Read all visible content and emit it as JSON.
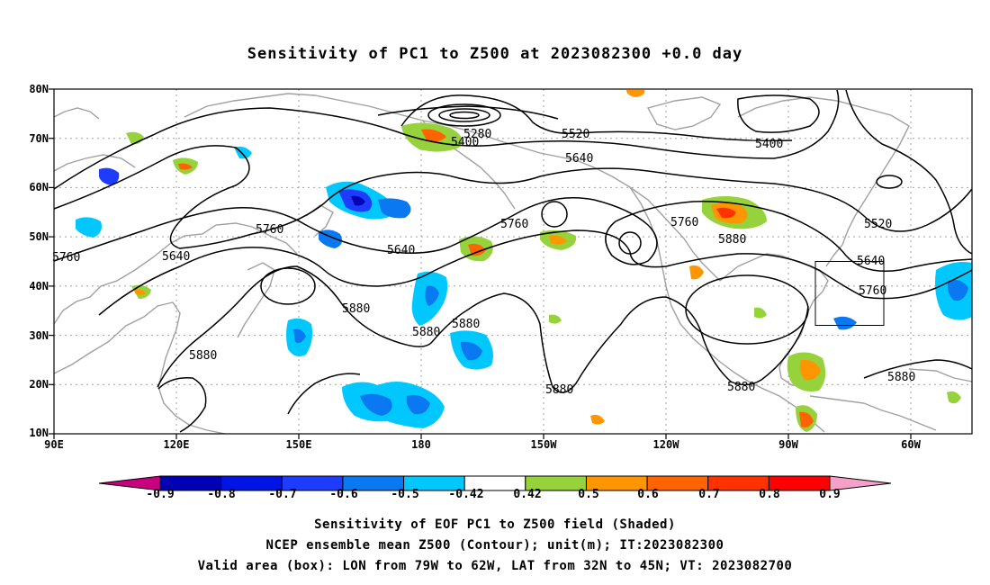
{
  "title": "Sensitivity of PC1 to Z500 at 2023082300 +0.0 day",
  "lat_labels": [
    "80N",
    "70N",
    "60N",
    "50N",
    "40N",
    "30N",
    "20N",
    "10N"
  ],
  "lon_labels": [
    "90E",
    "120E",
    "150E",
    "180",
    "150W",
    "120W",
    "90W",
    "60W"
  ],
  "contour_labels": [
    {
      "id": "c5280",
      "text": "5280"
    },
    {
      "id": "c5400a",
      "text": "5400"
    },
    {
      "id": "c5520a",
      "text": "5520"
    },
    {
      "id": "c5400b",
      "text": "5400"
    },
    {
      "id": "c5640a",
      "text": "5640"
    },
    {
      "id": "c5760a",
      "text": "5760"
    },
    {
      "id": "c5760b",
      "text": "5760"
    },
    {
      "id": "c5640b",
      "text": "5640"
    },
    {
      "id": "c5760c",
      "text": "5760"
    },
    {
      "id": "c5640c",
      "text": "5640"
    },
    {
      "id": "c5760d",
      "text": "5760"
    },
    {
      "id": "c5880a",
      "text": "5880"
    },
    {
      "id": "c5520b",
      "text": "5520"
    },
    {
      "id": "c5640d",
      "text": "5640"
    },
    {
      "id": "c5760e",
      "text": "5760"
    },
    {
      "id": "c5880b",
      "text": "5880"
    },
    {
      "id": "c5880c",
      "text": "5880"
    },
    {
      "id": "c5880d",
      "text": "5880"
    },
    {
      "id": "c5880e",
      "text": "5880"
    },
    {
      "id": "c5880f",
      "text": "5880"
    },
    {
      "id": "c5880g",
      "text": "5880"
    },
    {
      "id": "c5880h",
      "text": "5880"
    }
  ],
  "colorbar": {
    "labels": [
      "-0.9",
      "-0.8",
      "-0.7",
      "-0.6",
      "-0.5",
      "-0.42",
      "0.42",
      "0.5",
      "0.6",
      "0.7",
      "0.8",
      "0.9"
    ],
    "colors": [
      "#c8007f",
      "#0000b4",
      "#0014e6",
      "#1e3cff",
      "#0a78f0",
      "#00c8ff",
      "#ffffff",
      "#96d23c",
      "#ff9600",
      "#ff6400",
      "#ff3200",
      "#ff0000",
      "#f5a0c8"
    ]
  },
  "colors": {
    "contour": "#000000",
    "coastline": "#a0a0a0",
    "grid": "#a0a0a0",
    "box": "#000000"
  },
  "captions": {
    "line1": "Sensitivity of EOF PC1 to Z500 field (Shaded)",
    "line2": "NCEP ensemble mean Z500 (Contour); unit(m); IT:2023082300",
    "line3": "Valid area (box): LON from 79W to 62W, LAT from 32N to 45N; VT: 2023082700"
  }
}
